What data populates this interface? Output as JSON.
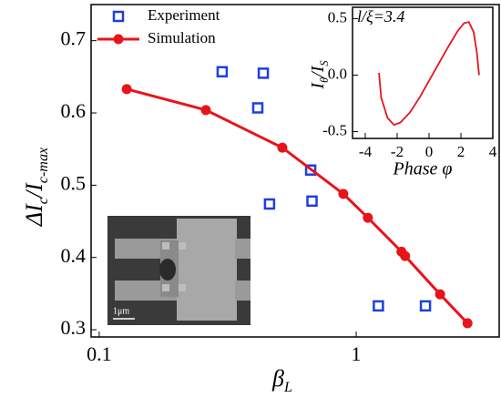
{
  "chart_data": [
    {
      "type": "line",
      "xscale": "log",
      "xlabel": [
        "β",
        "L"
      ],
      "ylabel": [
        "ΔI",
        "c",
        "/I",
        "c-max"
      ],
      "xlim": [
        0.093,
        3.6
      ],
      "ylim": [
        0.29,
        0.75
      ],
      "xticks": [
        0.1,
        1
      ],
      "yticks": [
        0.3,
        0.4,
        0.5,
        0.6,
        0.7
      ],
      "legend": "upper left",
      "series": [
        {
          "name": "Experiment",
          "color": "#1f3fe0",
          "marker": "square",
          "line": false,
          "x": [
            0.301,
            0.435,
            0.414,
            0.46,
            0.665,
            0.673,
            1.22,
            1.86
          ],
          "values": [
            0.657,
            0.655,
            0.607,
            0.474,
            0.521,
            0.478,
            0.333,
            0.333
          ]
        },
        {
          "name": "Simulation",
          "color": "#e8141c",
          "marker": "circle",
          "line": true,
          "x": [
            0.128,
            0.26,
            0.516,
            0.891,
            1.11,
            1.5,
            1.55,
            2.12,
            2.71
          ],
          "values": [
            0.633,
            0.604,
            0.552,
            0.488,
            0.455,
            0.408,
            0.402,
            0.349,
            0.309
          ]
        }
      ],
      "image_scale_label": "1μm"
    },
    {
      "type": "line",
      "annotation": "l/ξ=3.4",
      "xlabel": "Phase φ",
      "ylabel": [
        "I",
        "θ",
        "/I",
        "S"
      ],
      "xlim": [
        -4.8,
        4.0
      ],
      "ylim": [
        -0.56,
        0.6
      ],
      "xticks": [
        -4,
        -2,
        0,
        2,
        4
      ],
      "yticks": [
        -0.5,
        {
          "value": 0,
          "label": "0.0"
        },
        0.5
      ],
      "series": [
        {
          "color": "#e8141c",
          "x": [
            -3.14,
            -3.0,
            -2.6,
            -2.2,
            -1.8,
            -1.2,
            -0.6,
            0,
            0.6,
            1.2,
            1.8,
            2.2,
            2.5,
            2.8,
            3.0,
            3.14
          ],
          "values": [
            0.02,
            -0.2,
            -0.38,
            -0.44,
            -0.42,
            -0.33,
            -0.2,
            -0.05,
            0.1,
            0.25,
            0.39,
            0.46,
            0.47,
            0.38,
            0.2,
            0
          ]
        }
      ]
    }
  ]
}
